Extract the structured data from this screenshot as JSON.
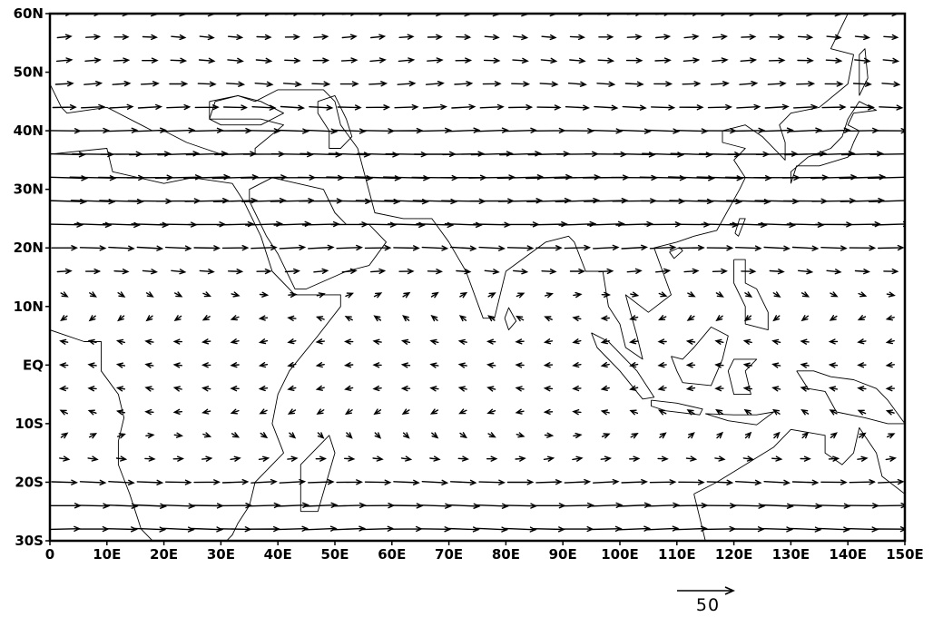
{
  "map": {
    "type": "wind-vector-map",
    "projection": "cylindrical-equidistant",
    "lon_range": [
      0,
      150
    ],
    "lat_range": [
      -30,
      60
    ],
    "x_ticks": [
      {
        "value": 0,
        "label": "0"
      },
      {
        "value": 10,
        "label": "10E"
      },
      {
        "value": 20,
        "label": "20E"
      },
      {
        "value": 30,
        "label": "30E"
      },
      {
        "value": 40,
        "label": "40E"
      },
      {
        "value": 50,
        "label": "50E"
      },
      {
        "value": 60,
        "label": "60E"
      },
      {
        "value": 70,
        "label": "70E"
      },
      {
        "value": 80,
        "label": "80E"
      },
      {
        "value": 90,
        "label": "90E"
      },
      {
        "value": 100,
        "label": "100E"
      },
      {
        "value": 110,
        "label": "110E"
      },
      {
        "value": 120,
        "label": "120E"
      },
      {
        "value": 130,
        "label": "130E"
      },
      {
        "value": 140,
        "label": "140E"
      },
      {
        "value": 150,
        "label": "150E"
      }
    ],
    "y_ticks": [
      {
        "value": 60,
        "label": "60N"
      },
      {
        "value": 50,
        "label": "50N"
      },
      {
        "value": 40,
        "label": "40N"
      },
      {
        "value": 30,
        "label": "30N"
      },
      {
        "value": 20,
        "label": "20N"
      },
      {
        "value": 10,
        "label": "10N"
      },
      {
        "value": 0,
        "label": "EQ"
      },
      {
        "value": -10,
        "label": "10S"
      },
      {
        "value": -20,
        "label": "20S"
      },
      {
        "value": -30,
        "label": "30S"
      }
    ],
    "reference_vector": {
      "magnitude": 50,
      "label": "50"
    },
    "vector_grid": {
      "lon_start": 2.5,
      "lon_step": 5,
      "lat_start": -28,
      "lat_step": 4
    },
    "wind_profile_u": [
      {
        "lat": -28,
        "u": 27
      },
      {
        "lat": -24,
        "u": 28
      },
      {
        "lat": -20,
        "u": 22
      },
      {
        "lat": -16,
        "u": 8
      },
      {
        "lat": -12,
        "u": 2
      },
      {
        "lat": -8,
        "u": -3
      },
      {
        "lat": -4,
        "u": -5
      },
      {
        "lat": 0,
        "u": -6
      },
      {
        "lat": 4,
        "u": -5
      },
      {
        "lat": 8,
        "u": -3
      },
      {
        "lat": 12,
        "u": 4
      },
      {
        "lat": 16,
        "u": 12
      },
      {
        "lat": 20,
        "u": 22
      },
      {
        "lat": 24,
        "u": 32
      },
      {
        "lat": 28,
        "u": 38
      },
      {
        "lat": 32,
        "u": 40
      },
      {
        "lat": 36,
        "u": 36
      },
      {
        "lat": 40,
        "u": 28
      },
      {
        "lat": 44,
        "u": 20
      },
      {
        "lat": 48,
        "u": 15
      },
      {
        "lat": 52,
        "u": 13
      },
      {
        "lat": 56,
        "u": 12
      }
    ],
    "land_outlines": [
      {
        "name": "africa",
        "lonlat": [
          [
            -5,
            36
          ],
          [
            0,
            36
          ],
          [
            10,
            37
          ],
          [
            11,
            33
          ],
          [
            20,
            31
          ],
          [
            25,
            32
          ],
          [
            32,
            31
          ],
          [
            34,
            28
          ],
          [
            37,
            22
          ],
          [
            39,
            16
          ],
          [
            43,
            12
          ],
          [
            51,
            12
          ],
          [
            51,
            10
          ],
          [
            47,
            5
          ],
          [
            42,
            -1
          ],
          [
            40,
            -5
          ],
          [
            39,
            -10
          ],
          [
            41,
            -15
          ],
          [
            36,
            -20
          ],
          [
            35,
            -24
          ],
          [
            33,
            -27
          ],
          [
            32,
            -29
          ],
          [
            30,
            -31
          ],
          [
            28,
            -33
          ],
          [
            22,
            -34
          ],
          [
            18,
            -34
          ],
          [
            18,
            -30
          ],
          [
            16,
            -28
          ],
          [
            15,
            -25
          ],
          [
            14,
            -22
          ],
          [
            12,
            -17
          ],
          [
            12,
            -13
          ],
          [
            13,
            -9
          ],
          [
            12,
            -5
          ],
          [
            9,
            -1
          ],
          [
            9,
            4
          ],
          [
            6,
            4
          ],
          [
            0,
            6
          ],
          [
            -5,
            5
          ],
          [
            -10,
            7
          ]
        ]
      },
      {
        "name": "arabia",
        "lonlat": [
          [
            35,
            28
          ],
          [
            35,
            30
          ],
          [
            39,
            32
          ],
          [
            48,
            30
          ],
          [
            50,
            26
          ],
          [
            52,
            24
          ],
          [
            56,
            24
          ],
          [
            58,
            22
          ],
          [
            59,
            21
          ],
          [
            56,
            17
          ],
          [
            52,
            16
          ],
          [
            45,
            13
          ],
          [
            43,
            13
          ],
          [
            40,
            19
          ],
          [
            38,
            22
          ],
          [
            36,
            26
          ],
          [
            35,
            28
          ]
        ]
      },
      {
        "name": "madagascar",
        "lonlat": [
          [
            44,
            -25
          ],
          [
            47,
            -25
          ],
          [
            50,
            -15
          ],
          [
            49,
            -12
          ],
          [
            44,
            -17
          ],
          [
            44,
            -25
          ]
        ]
      },
      {
        "name": "europe-asia",
        "lonlat": [
          [
            0,
            60
          ],
          [
            -1,
            50
          ],
          [
            2,
            44
          ],
          [
            3,
            43
          ],
          [
            10,
            44
          ],
          [
            16,
            41
          ],
          [
            18,
            40
          ],
          [
            20,
            40
          ],
          [
            24,
            38
          ],
          [
            27,
            37
          ],
          [
            30,
            36
          ],
          [
            36,
            36
          ],
          [
            36,
            37
          ],
          [
            41,
            41
          ],
          [
            37,
            42
          ],
          [
            28,
            42
          ],
          [
            29,
            45
          ],
          [
            33,
            46
          ],
          [
            36,
            45
          ],
          [
            40,
            47
          ],
          [
            48,
            47
          ],
          [
            50,
            45
          ],
          [
            51,
            41
          ],
          [
            54,
            37
          ],
          [
            57,
            26
          ],
          [
            62,
            25
          ],
          [
            67,
            25
          ],
          [
            70,
            21
          ],
          [
            73,
            16
          ],
          [
            76,
            8
          ],
          [
            78,
            8
          ],
          [
            80,
            16
          ],
          [
            87,
            21
          ],
          [
            91,
            22
          ],
          [
            92,
            21
          ],
          [
            94,
            16
          ],
          [
            97,
            16
          ],
          [
            98,
            10
          ],
          [
            100,
            7
          ],
          [
            101,
            3
          ],
          [
            104,
            1
          ],
          [
            103,
            5
          ],
          [
            101,
            12
          ],
          [
            105,
            9
          ],
          [
            109,
            12
          ],
          [
            106,
            20
          ],
          [
            110,
            21
          ],
          [
            113,
            22
          ],
          [
            117,
            23
          ],
          [
            121,
            30
          ],
          [
            122,
            32
          ],
          [
            120,
            35
          ],
          [
            122,
            37
          ],
          [
            118,
            38
          ],
          [
            118,
            40
          ],
          [
            122,
            41
          ],
          [
            125,
            39
          ],
          [
            129,
            35
          ],
          [
            129,
            38
          ],
          [
            128,
            41
          ],
          [
            130,
            43
          ],
          [
            135,
            44
          ],
          [
            140,
            48
          ],
          [
            141,
            53
          ],
          [
            137,
            54
          ],
          [
            140,
            60
          ]
        ]
      },
      {
        "name": "caspian",
        "lonlat": [
          [
            47,
            45
          ],
          [
            50,
            46
          ],
          [
            52,
            42
          ],
          [
            53,
            39
          ],
          [
            51,
            37
          ],
          [
            49,
            37
          ],
          [
            49,
            40
          ],
          [
            47,
            43
          ],
          [
            47,
            45
          ]
        ]
      },
      {
        "name": "black-sea",
        "lonlat": [
          [
            28,
            45
          ],
          [
            33,
            46
          ],
          [
            37,
            45
          ],
          [
            41,
            43
          ],
          [
            37,
            41
          ],
          [
            30,
            41
          ],
          [
            28,
            42
          ],
          [
            28,
            45
          ]
        ]
      },
      {
        "name": "sri-lanka",
        "lonlat": [
          [
            79.8,
            8
          ],
          [
            80.5,
            9.8
          ],
          [
            81.8,
            7.5
          ],
          [
            80.5,
            6
          ],
          [
            79.8,
            8
          ]
        ]
      },
      {
        "name": "sumatra",
        "lonlat": [
          [
            95,
            5.5
          ],
          [
            98,
            4
          ],
          [
            103,
            -1
          ],
          [
            106,
            -5.5
          ],
          [
            104,
            -5.8
          ],
          [
            100,
            -1
          ],
          [
            96,
            3
          ],
          [
            95,
            5.5
          ]
        ]
      },
      {
        "name": "java",
        "lonlat": [
          [
            105.5,
            -6
          ],
          [
            110,
            -6.5
          ],
          [
            114.5,
            -7.5
          ],
          [
            114,
            -8.5
          ],
          [
            108,
            -7.8
          ],
          [
            105.5,
            -7
          ],
          [
            105.5,
            -6
          ]
        ]
      },
      {
        "name": "borneo",
        "lonlat": [
          [
            109,
            1.5
          ],
          [
            111,
            1
          ],
          [
            113,
            3
          ],
          [
            116,
            6.5
          ],
          [
            119,
            5
          ],
          [
            118,
            1
          ],
          [
            116,
            -3.5
          ],
          [
            111,
            -3
          ],
          [
            110,
            -1
          ],
          [
            109,
            1.5
          ]
        ]
      },
      {
        "name": "sulawesi",
        "lonlat": [
          [
            119,
            -1
          ],
          [
            120,
            1
          ],
          [
            124,
            1
          ],
          [
            122,
            -1
          ],
          [
            123,
            -5
          ],
          [
            120,
            -5
          ],
          [
            119,
            -1
          ]
        ]
      },
      {
        "name": "philippines",
        "lonlat": [
          [
            120,
            18
          ],
          [
            122,
            18
          ],
          [
            122,
            14
          ],
          [
            124,
            13
          ],
          [
            126,
            9
          ],
          [
            126,
            6
          ],
          [
            122,
            7
          ],
          [
            122,
            10
          ],
          [
            120,
            14
          ],
          [
            120,
            18
          ]
        ]
      },
      {
        "name": "taiwan",
        "lonlat": [
          [
            120.2,
            22.5
          ],
          [
            121,
            25
          ],
          [
            122,
            25
          ],
          [
            120.8,
            22
          ],
          [
            120.2,
            22.5
          ]
        ]
      },
      {
        "name": "hainan",
        "lonlat": [
          [
            108.7,
            19.3
          ],
          [
            110.5,
            20.1
          ],
          [
            111,
            19.5
          ],
          [
            109.5,
            18.2
          ],
          [
            108.7,
            19.3
          ]
        ]
      },
      {
        "name": "japan",
        "lonlat": [
          [
            130,
            31
          ],
          [
            131,
            34
          ],
          [
            135,
            34
          ],
          [
            140,
            35.5
          ],
          [
            141,
            38
          ],
          [
            142,
            40
          ],
          [
            140,
            41
          ],
          [
            141,
            43
          ],
          [
            145,
            43.5
          ],
          [
            142,
            45
          ],
          [
            140,
            42
          ],
          [
            139,
            39
          ],
          [
            137,
            37
          ],
          [
            133,
            35.5
          ],
          [
            130,
            33
          ],
          [
            130,
            31
          ]
        ]
      },
      {
        "name": "sakhalin",
        "lonlat": [
          [
            142,
            46
          ],
          [
            143.5,
            49
          ],
          [
            143,
            54
          ],
          [
            142,
            53
          ],
          [
            142,
            46
          ]
        ]
      },
      {
        "name": "new-guinea",
        "lonlat": [
          [
            131,
            -1
          ],
          [
            134,
            -1
          ],
          [
            137,
            -2
          ],
          [
            141,
            -2.5
          ],
          [
            145,
            -4
          ],
          [
            147,
            -6
          ],
          [
            150,
            -10
          ],
          [
            147,
            -10
          ],
          [
            143,
            -9
          ],
          [
            138,
            -8
          ],
          [
            136,
            -4.5
          ],
          [
            133,
            -4
          ],
          [
            131,
            -1
          ]
        ]
      },
      {
        "name": "timor-etc",
        "lonlat": [
          [
            115,
            -8.3
          ],
          [
            120,
            -8.5
          ],
          [
            124,
            -8.5
          ],
          [
            127,
            -8
          ],
          [
            124,
            -10.2
          ],
          [
            119,
            -9.5
          ],
          [
            115,
            -8.3
          ]
        ]
      },
      {
        "name": "australia",
        "lonlat": [
          [
            113,
            -22
          ],
          [
            114,
            -26
          ],
          [
            115,
            -30
          ],
          [
            120,
            -34
          ],
          [
            129,
            -31.5
          ],
          [
            135,
            -33
          ],
          [
            140,
            -38
          ],
          [
            148,
            -38
          ],
          [
            153,
            -28
          ],
          [
            150,
            -22
          ],
          [
            146,
            -19
          ],
          [
            145,
            -15
          ],
          [
            142,
            -10.7
          ],
          [
            141,
            -15
          ],
          [
            139,
            -17
          ],
          [
            136,
            -15
          ],
          [
            136,
            -12
          ],
          [
            130,
            -11
          ],
          [
            127,
            -14
          ],
          [
            122,
            -17
          ],
          [
            117,
            -20
          ],
          [
            113,
            -22
          ]
        ]
      }
    ]
  }
}
